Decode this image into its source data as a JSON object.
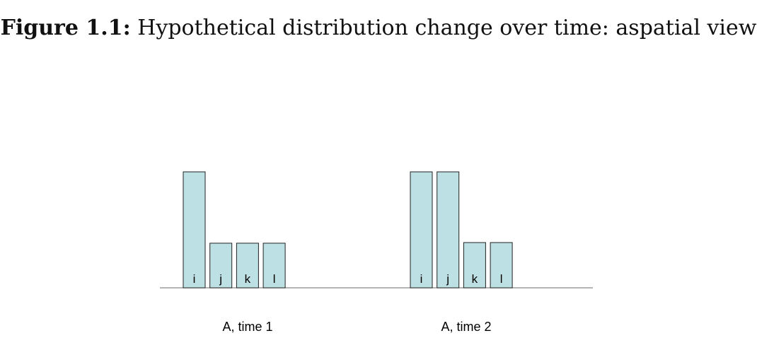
{
  "caption": {
    "label": "Figure 1.1:",
    "text": "Hypothetical distribution change over time: aspatial view"
  },
  "colors": {
    "bar_fill": "#bde0e4",
    "bar_stroke": "#222222",
    "baseline": "#888888"
  },
  "chart_data": [
    {
      "type": "bar",
      "group_label": "A, time 1",
      "categories": [
        "i",
        "j",
        "k",
        "l"
      ],
      "values": [
        2,
        0.77,
        0.77,
        0.77
      ],
      "ylim": [
        0,
        2
      ]
    },
    {
      "type": "bar",
      "group_label": "A, time 2",
      "categories": [
        "i",
        "j",
        "k",
        "l"
      ],
      "values": [
        2,
        2,
        0.78,
        0.78
      ],
      "ylim": [
        0,
        2
      ]
    }
  ]
}
